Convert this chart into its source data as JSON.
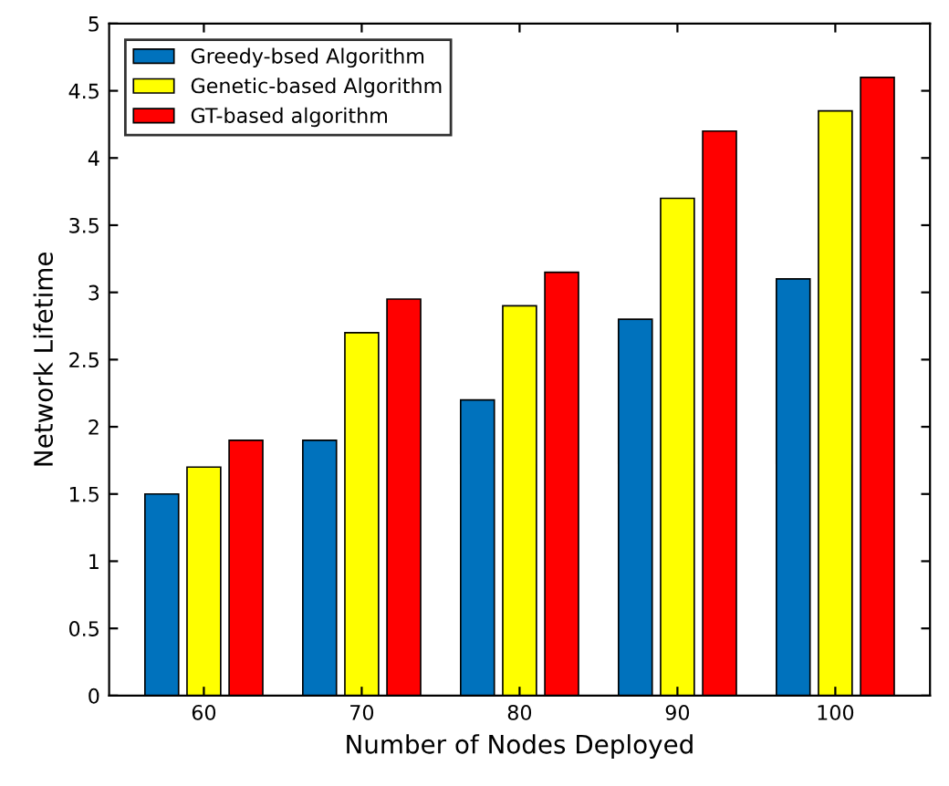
{
  "chart_data": {
    "type": "bar",
    "xlabel": "Number of Nodes Deployed",
    "ylabel": "Network Lifetime",
    "categories": [
      "60",
      "70",
      "80",
      "90",
      "100"
    ],
    "series": [
      {
        "name": "Greedy-bsed Algorithm",
        "color": "#0072bd",
        "values": [
          1.5,
          1.9,
          2.2,
          2.8,
          3.1
        ]
      },
      {
        "name": "Genetic-based Algorithm",
        "color": "#ffff00",
        "values": [
          1.7,
          2.7,
          2.9,
          3.7,
          4.35
        ]
      },
      {
        "name": "GT-based algorithm",
        "color": "#ff0000",
        "values": [
          1.9,
          2.95,
          3.15,
          4.2,
          4.6
        ]
      }
    ],
    "ylim": [
      0,
      5
    ],
    "yticks": [
      0,
      0.5,
      1,
      1.5,
      2,
      2.5,
      3,
      3.5,
      4,
      4.5,
      5
    ],
    "grid": false,
    "legend": "top left"
  }
}
